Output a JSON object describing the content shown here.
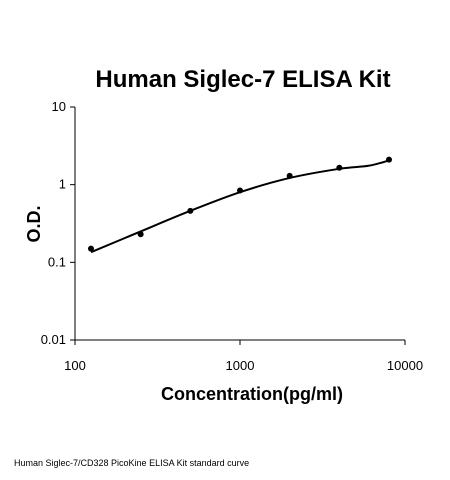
{
  "chart_data": {
    "type": "line",
    "title": "Human Siglec-7 ELISA Kit",
    "xlabel": "Concentration(pg/ml)",
    "ylabel": "O.D.",
    "x_scale": "log",
    "y_scale": "log",
    "xlim": [
      100,
      10000
    ],
    "ylim": [
      0.01,
      10
    ],
    "x_ticks": [
      100,
      1000,
      10000
    ],
    "x_tick_labels": [
      "100",
      "1000",
      "10000"
    ],
    "y_ticks": [
      0.01,
      0.1,
      1,
      10
    ],
    "y_tick_labels": [
      "0.01",
      "0.1",
      "1",
      "10"
    ],
    "grid": false,
    "legend": false,
    "points": {
      "x": [
        125,
        250,
        500,
        1000,
        2000,
        4000,
        8000
      ],
      "y": [
        0.15,
        0.23,
        0.46,
        0.84,
        1.3,
        1.65,
        2.1
      ]
    },
    "fit_curve": {
      "x": [
        125,
        250,
        500,
        1000,
        2000,
        4000,
        6000,
        8000
      ],
      "y": [
        0.135,
        0.25,
        0.46,
        0.8,
        1.22,
        1.6,
        1.75,
        2.05
      ]
    },
    "colors": {
      "line": "#000000",
      "marker": "#000000",
      "axis": "#000000"
    }
  },
  "caption": "Human Siglec-7/CD328 PicoKine ELISA Kit standard curve"
}
